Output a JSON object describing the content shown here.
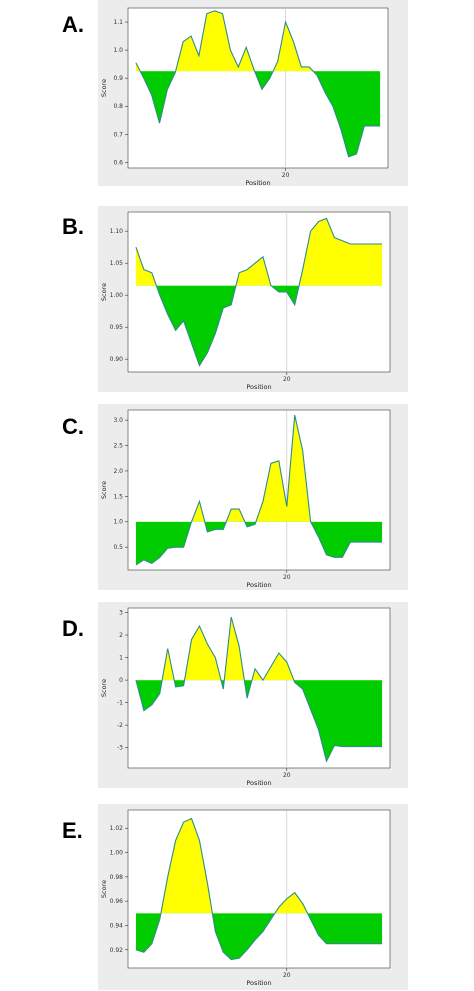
{
  "chart_data": [
    {
      "panel": "A.",
      "type": "area",
      "xlabel": "Position",
      "ylabel": "Score",
      "threshold": 0.925,
      "xlim": [
        0,
        33
      ],
      "ylim": [
        0.58,
        1.15
      ],
      "xticks": [
        20
      ],
      "yticks": [
        0.6,
        0.7,
        0.8,
        0.9,
        1.0,
        1.1
      ],
      "ytick_labels": [
        "0.6",
        "0.7",
        "0.8",
        "0.9",
        "1.0",
        "1.1"
      ],
      "colors": {
        "above": "#ffff00",
        "below": "#00cc00",
        "line": "#2e8b8b"
      },
      "x": [
        1,
        2,
        3,
        4,
        5,
        6,
        7,
        8,
        9,
        10,
        11,
        12,
        13,
        14,
        15,
        16,
        17,
        18,
        19,
        20,
        21,
        22,
        23,
        24,
        25,
        26,
        27,
        28,
        29,
        30,
        31,
        32
      ],
      "values": [
        0.955,
        0.9,
        0.84,
        0.74,
        0.86,
        0.92,
        1.03,
        1.05,
        0.98,
        1.13,
        1.14,
        1.13,
        1.0,
        0.94,
        1.01,
        0.93,
        0.86,
        0.9,
        0.96,
        1.1,
        1.03,
        0.94,
        0.94,
        0.91,
        0.85,
        0.8,
        0.72,
        0.62,
        0.63,
        0.73,
        0.73,
        0.73
      ]
    },
    {
      "panel": "B.",
      "type": "area",
      "xlabel": "Position",
      "ylabel": "Score",
      "threshold": 1.015,
      "xlim": [
        0,
        33
      ],
      "ylim": [
        0.88,
        1.13
      ],
      "xticks": [
        20
      ],
      "yticks": [
        0.9,
        0.95,
        1.0,
        1.05,
        1.1
      ],
      "ytick_labels": [
        "0.90",
        "0.95",
        "1.00",
        "1.05",
        "1.10"
      ],
      "colors": {
        "above": "#ffff00",
        "below": "#00cc00",
        "line": "#2e8b8b"
      },
      "x": [
        1,
        2,
        3,
        4,
        5,
        6,
        7,
        8,
        9,
        10,
        11,
        12,
        13,
        14,
        15,
        16,
        17,
        18,
        19,
        20,
        21,
        22,
        23,
        24,
        25,
        26,
        27,
        28,
        29,
        30,
        31,
        32
      ],
      "values": [
        1.075,
        1.04,
        1.035,
        1.0,
        0.97,
        0.945,
        0.96,
        0.925,
        0.89,
        0.91,
        0.94,
        0.98,
        0.985,
        1.035,
        1.04,
        1.05,
        1.06,
        1.015,
        1.005,
        1.005,
        0.985,
        1.04,
        1.1,
        1.115,
        1.12,
        1.09,
        1.085,
        1.08,
        1.08,
        1.08,
        1.08,
        1.08
      ]
    },
    {
      "panel": "C.",
      "type": "area",
      "xlabel": "Position",
      "ylabel": "Score",
      "threshold": 1.0,
      "xlim": [
        0,
        33
      ],
      "ylim": [
        0.05,
        3.2
      ],
      "xticks": [
        20
      ],
      "yticks": [
        0.5,
        1.0,
        1.5,
        2.0,
        2.5,
        3.0
      ],
      "ytick_labels": [
        "0.5",
        "1.0",
        "1.5",
        "2.0",
        "2.5",
        "3.0"
      ],
      "colors": {
        "above": "#ffff00",
        "below": "#00cc00",
        "line": "#2e8b8b"
      },
      "x": [
        1,
        2,
        3,
        4,
        5,
        6,
        7,
        8,
        9,
        10,
        11,
        12,
        13,
        14,
        15,
        16,
        17,
        18,
        19,
        20,
        21,
        22,
        23,
        24,
        25,
        26,
        27,
        28,
        29,
        30,
        31,
        32
      ],
      "values": [
        0.15,
        0.25,
        0.18,
        0.3,
        0.48,
        0.5,
        0.5,
        1.0,
        1.4,
        0.8,
        0.85,
        0.85,
        1.25,
        1.25,
        0.9,
        0.95,
        1.4,
        2.15,
        2.2,
        1.3,
        3.1,
        2.4,
        1.0,
        0.7,
        0.35,
        0.3,
        0.3,
        0.6,
        0.6,
        0.6,
        0.6,
        0.6
      ]
    },
    {
      "panel": "D.",
      "type": "area",
      "xlabel": "Position",
      "ylabel": "Score",
      "threshold": 0.0,
      "xlim": [
        0,
        33
      ],
      "ylim": [
        -3.9,
        3.2
      ],
      "xticks": [
        20
      ],
      "yticks": [
        -3,
        -2,
        -1,
        0,
        1,
        2,
        3
      ],
      "ytick_labels": [
        "-3",
        "-2",
        "-1",
        "0",
        "1",
        "2",
        "3"
      ],
      "colors": {
        "above": "#ffff00",
        "below": "#00cc00",
        "line": "#2e8b8b"
      },
      "x": [
        1,
        2,
        3,
        4,
        5,
        6,
        7,
        8,
        9,
        10,
        11,
        12,
        13,
        14,
        15,
        16,
        17,
        18,
        19,
        20,
        21,
        22,
        23,
        24,
        25,
        26,
        27,
        28,
        29,
        30,
        31,
        32
      ],
      "values": [
        0.0,
        -1.35,
        -1.1,
        -0.6,
        1.4,
        -0.3,
        -0.25,
        1.8,
        2.4,
        1.6,
        1.0,
        -0.4,
        2.8,
        1.5,
        -0.8,
        0.5,
        0.0,
        0.6,
        1.2,
        0.8,
        -0.1,
        -0.4,
        -1.3,
        -2.2,
        -3.6,
        -2.9,
        -2.95,
        -2.95,
        -2.95,
        -2.95,
        -2.95,
        -2.95
      ]
    },
    {
      "panel": "E.",
      "type": "area",
      "xlabel": "Position",
      "ylabel": "Score",
      "threshold": 0.95,
      "xlim": [
        0,
        33
      ],
      "ylim": [
        0.905,
        1.035
      ],
      "xticks": [
        20
      ],
      "yticks": [
        0.92,
        0.94,
        0.96,
        0.98,
        1.0,
        1.02
      ],
      "ytick_labels": [
        "0.92",
        "0.94",
        "0.96",
        "0.98",
        "1.00",
        "1.02"
      ],
      "colors": {
        "above": "#ffff00",
        "below": "#00cc00",
        "line": "#2e8b8b"
      },
      "x": [
        1,
        2,
        3,
        4,
        5,
        6,
        7,
        8,
        9,
        10,
        11,
        12,
        13,
        14,
        15,
        16,
        17,
        18,
        19,
        20,
        21,
        22,
        23,
        24,
        25,
        26,
        27,
        28,
        29,
        30,
        31,
        32
      ],
      "values": [
        0.92,
        0.918,
        0.925,
        0.945,
        0.98,
        1.01,
        1.025,
        1.028,
        1.01,
        0.975,
        0.935,
        0.918,
        0.912,
        0.913,
        0.92,
        0.928,
        0.935,
        0.945,
        0.955,
        0.962,
        0.967,
        0.958,
        0.945,
        0.932,
        0.925,
        0.925,
        0.925,
        0.925,
        0.925,
        0.925,
        0.925,
        0.925
      ]
    }
  ]
}
